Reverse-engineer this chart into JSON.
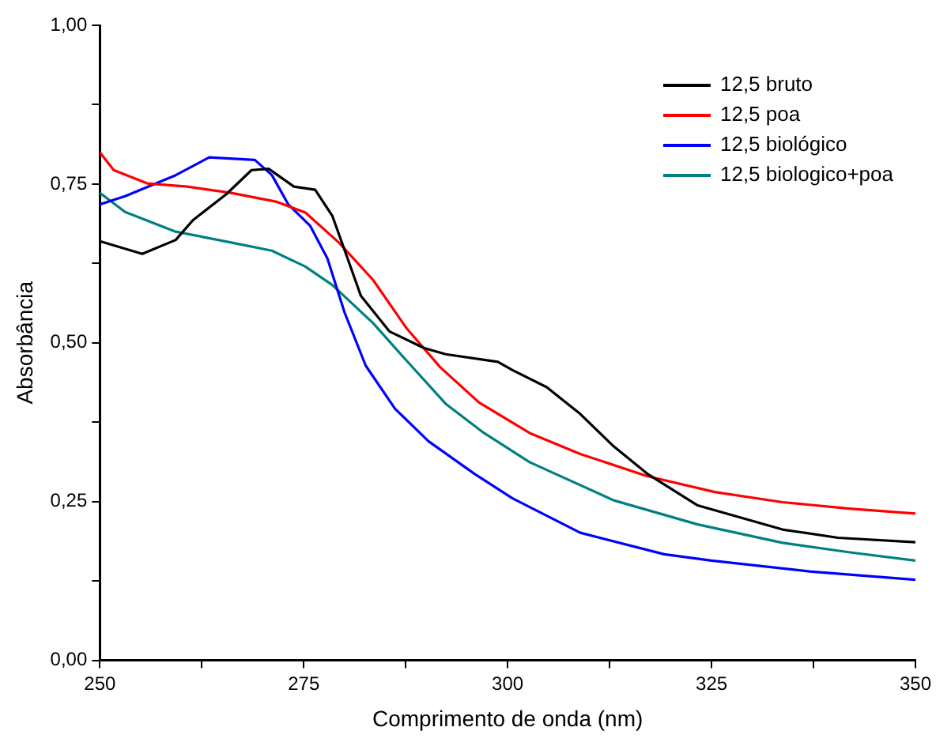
{
  "chart_data": {
    "type": "line",
    "xlabel": "Comprimento de onda (nm)",
    "ylabel": "Absorbância",
    "xlim": [
      250,
      350
    ],
    "ylim": [
      0,
      1
    ],
    "xticks": [
      250,
      {
        "value": 262.5,
        "label": null
      },
      275,
      {
        "value": 287.5,
        "label": null
      },
      300,
      {
        "value": 312.5,
        "label": null
      },
      325,
      {
        "value": 337.5,
        "label": null
      },
      350
    ],
    "yticks": [
      {
        "value": 0,
        "label": "0,00"
      },
      {
        "value": 0.125,
        "label": null
      },
      {
        "value": 0.25,
        "label": "0,25"
      },
      {
        "value": 0.375,
        "label": null
      },
      {
        "value": 0.5,
        "label": "0,50"
      },
      {
        "value": 0.625,
        "label": null
      },
      {
        "value": 0.75,
        "label": "0,75"
      },
      {
        "value": 0.875,
        "label": null
      },
      {
        "value": 1,
        "label": "1,00"
      }
    ],
    "grid": false,
    "legend": "top right",
    "marker": "none",
    "line_style": "solid",
    "series": [
      {
        "name": "12,5 bruto",
        "color": "#000000",
        "x": [
          250,
          255.2,
          259.3,
          261.4,
          265.5,
          268.6,
          270.7,
          273.8,
          276.4,
          278.5,
          280.4,
          282,
          285.5,
          289.7,
          292.4,
          298.8,
          300.6,
          304.8,
          308.9,
          313,
          317.1,
          323.3,
          333.7,
          340.5,
          350
        ],
        "values": [
          0.66,
          0.64,
          0.662,
          0.693,
          0.734,
          0.772,
          0.774,
          0.746,
          0.741,
          0.7,
          0.632,
          0.574,
          0.518,
          0.492,
          0.482,
          0.47,
          0.457,
          0.43,
          0.388,
          0.337,
          0.294,
          0.244,
          0.206,
          0.193,
          0.186
        ]
      },
      {
        "name": "12,5 poa",
        "color": "#ff0000",
        "x": [
          250,
          251.7,
          255.8,
          260.7,
          266.1,
          271.7,
          275.2,
          279.3,
          283.5,
          287.6,
          291.7,
          296.5,
          302.7,
          308.9,
          317.1,
          325.4,
          333.7,
          341.9,
          350
        ],
        "values": [
          0.8,
          0.772,
          0.751,
          0.746,
          0.736,
          0.722,
          0.705,
          0.658,
          0.599,
          0.523,
          0.462,
          0.406,
          0.358,
          0.325,
          0.29,
          0.265,
          0.249,
          0.239,
          0.231
        ]
      },
      {
        "name": "12,5 biológico",
        "color": "#0000ff",
        "x": [
          250,
          253.1,
          259.3,
          263.4,
          269,
          271.1,
          273.1,
          275.8,
          277.9,
          280,
          282.6,
          286.2,
          290.3,
          295.9,
          300.6,
          308.9,
          319.2,
          325,
          337,
          350
        ],
        "values": [
          0.718,
          0.731,
          0.764,
          0.792,
          0.788,
          0.764,
          0.718,
          0.684,
          0.633,
          0.548,
          0.464,
          0.396,
          0.345,
          0.294,
          0.255,
          0.201,
          0.167,
          0.157,
          0.14,
          0.127
        ]
      },
      {
        "name": "12,5 biologico+poa",
        "color": "#008080",
        "x": [
          250,
          253.1,
          259.3,
          266.1,
          271.1,
          275.2,
          278.5,
          283.5,
          287.6,
          292.4,
          297.1,
          302.7,
          313,
          323.3,
          333.7,
          342,
          350
        ],
        "values": [
          0.736,
          0.706,
          0.675,
          0.658,
          0.645,
          0.62,
          0.591,
          0.531,
          0.472,
          0.404,
          0.358,
          0.312,
          0.252,
          0.214,
          0.185,
          0.17,
          0.157
        ]
      }
    ]
  }
}
